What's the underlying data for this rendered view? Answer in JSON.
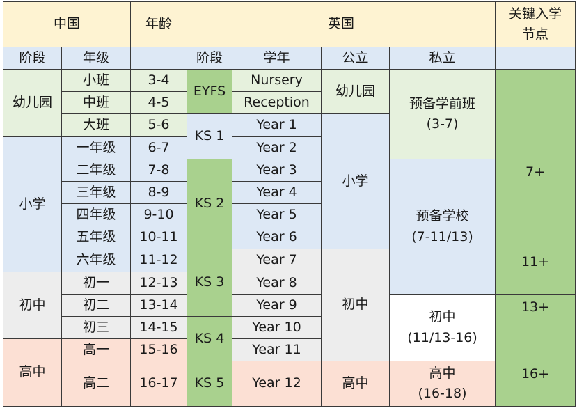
{
  "header": {
    "china": "中国",
    "age": "年龄",
    "uk": "英国",
    "key_entry": "关键入学\n节点"
  },
  "subheader": {
    "stage": "阶段",
    "grade": "年级",
    "uk_stage": "阶段",
    "school_year": "学年",
    "public": "公立",
    "private": "私立"
  },
  "china_stages": {
    "kindergarten": "幼儿园",
    "primary": "小学",
    "junior": "初中",
    "senior": "高中"
  },
  "grades": [
    "小班",
    "中班",
    "大班",
    "一年级",
    "二年级",
    "三年级",
    "四年级",
    "五年级",
    "六年级",
    "初一",
    "初二",
    "初三",
    "高一",
    "高二"
  ],
  "ages": [
    "3-4",
    "4-5",
    "5-6",
    "6-7",
    "7-8",
    "8-9",
    "9-10",
    "10-11",
    "11-12",
    "12-13",
    "13-14",
    "14-15",
    "15-16",
    "16-17"
  ],
  "uk_stages": {
    "eyfs": "EYFS",
    "ks1": "KS 1",
    "ks2": "KS 2",
    "ks3": "KS 3",
    "ks4": "KS 4",
    "ks5": "KS 5"
  },
  "school_years": [
    "Nursery",
    "Reception",
    "Year 1",
    "Year 2",
    "Year 3",
    "Year 4",
    "Year 5",
    "Year 6",
    "Year 7",
    "Year 8",
    "Year 9",
    "Year 10",
    "Year 11",
    "Year 12"
  ],
  "public": {
    "kindergarten": "幼儿园",
    "primary": "小学",
    "junior": "初中",
    "senior": "高中"
  },
  "private": {
    "pre_prep": "预备学前班\n(3-7)",
    "prep": "预备学校\n(7-11/13)",
    "senior": "初中\n(11/13-16)",
    "sixth": "高中\n(16-18)"
  },
  "key_points": {
    "k7": "7+",
    "k11": "11+",
    "k13": "13+",
    "k16": "16+"
  }
}
